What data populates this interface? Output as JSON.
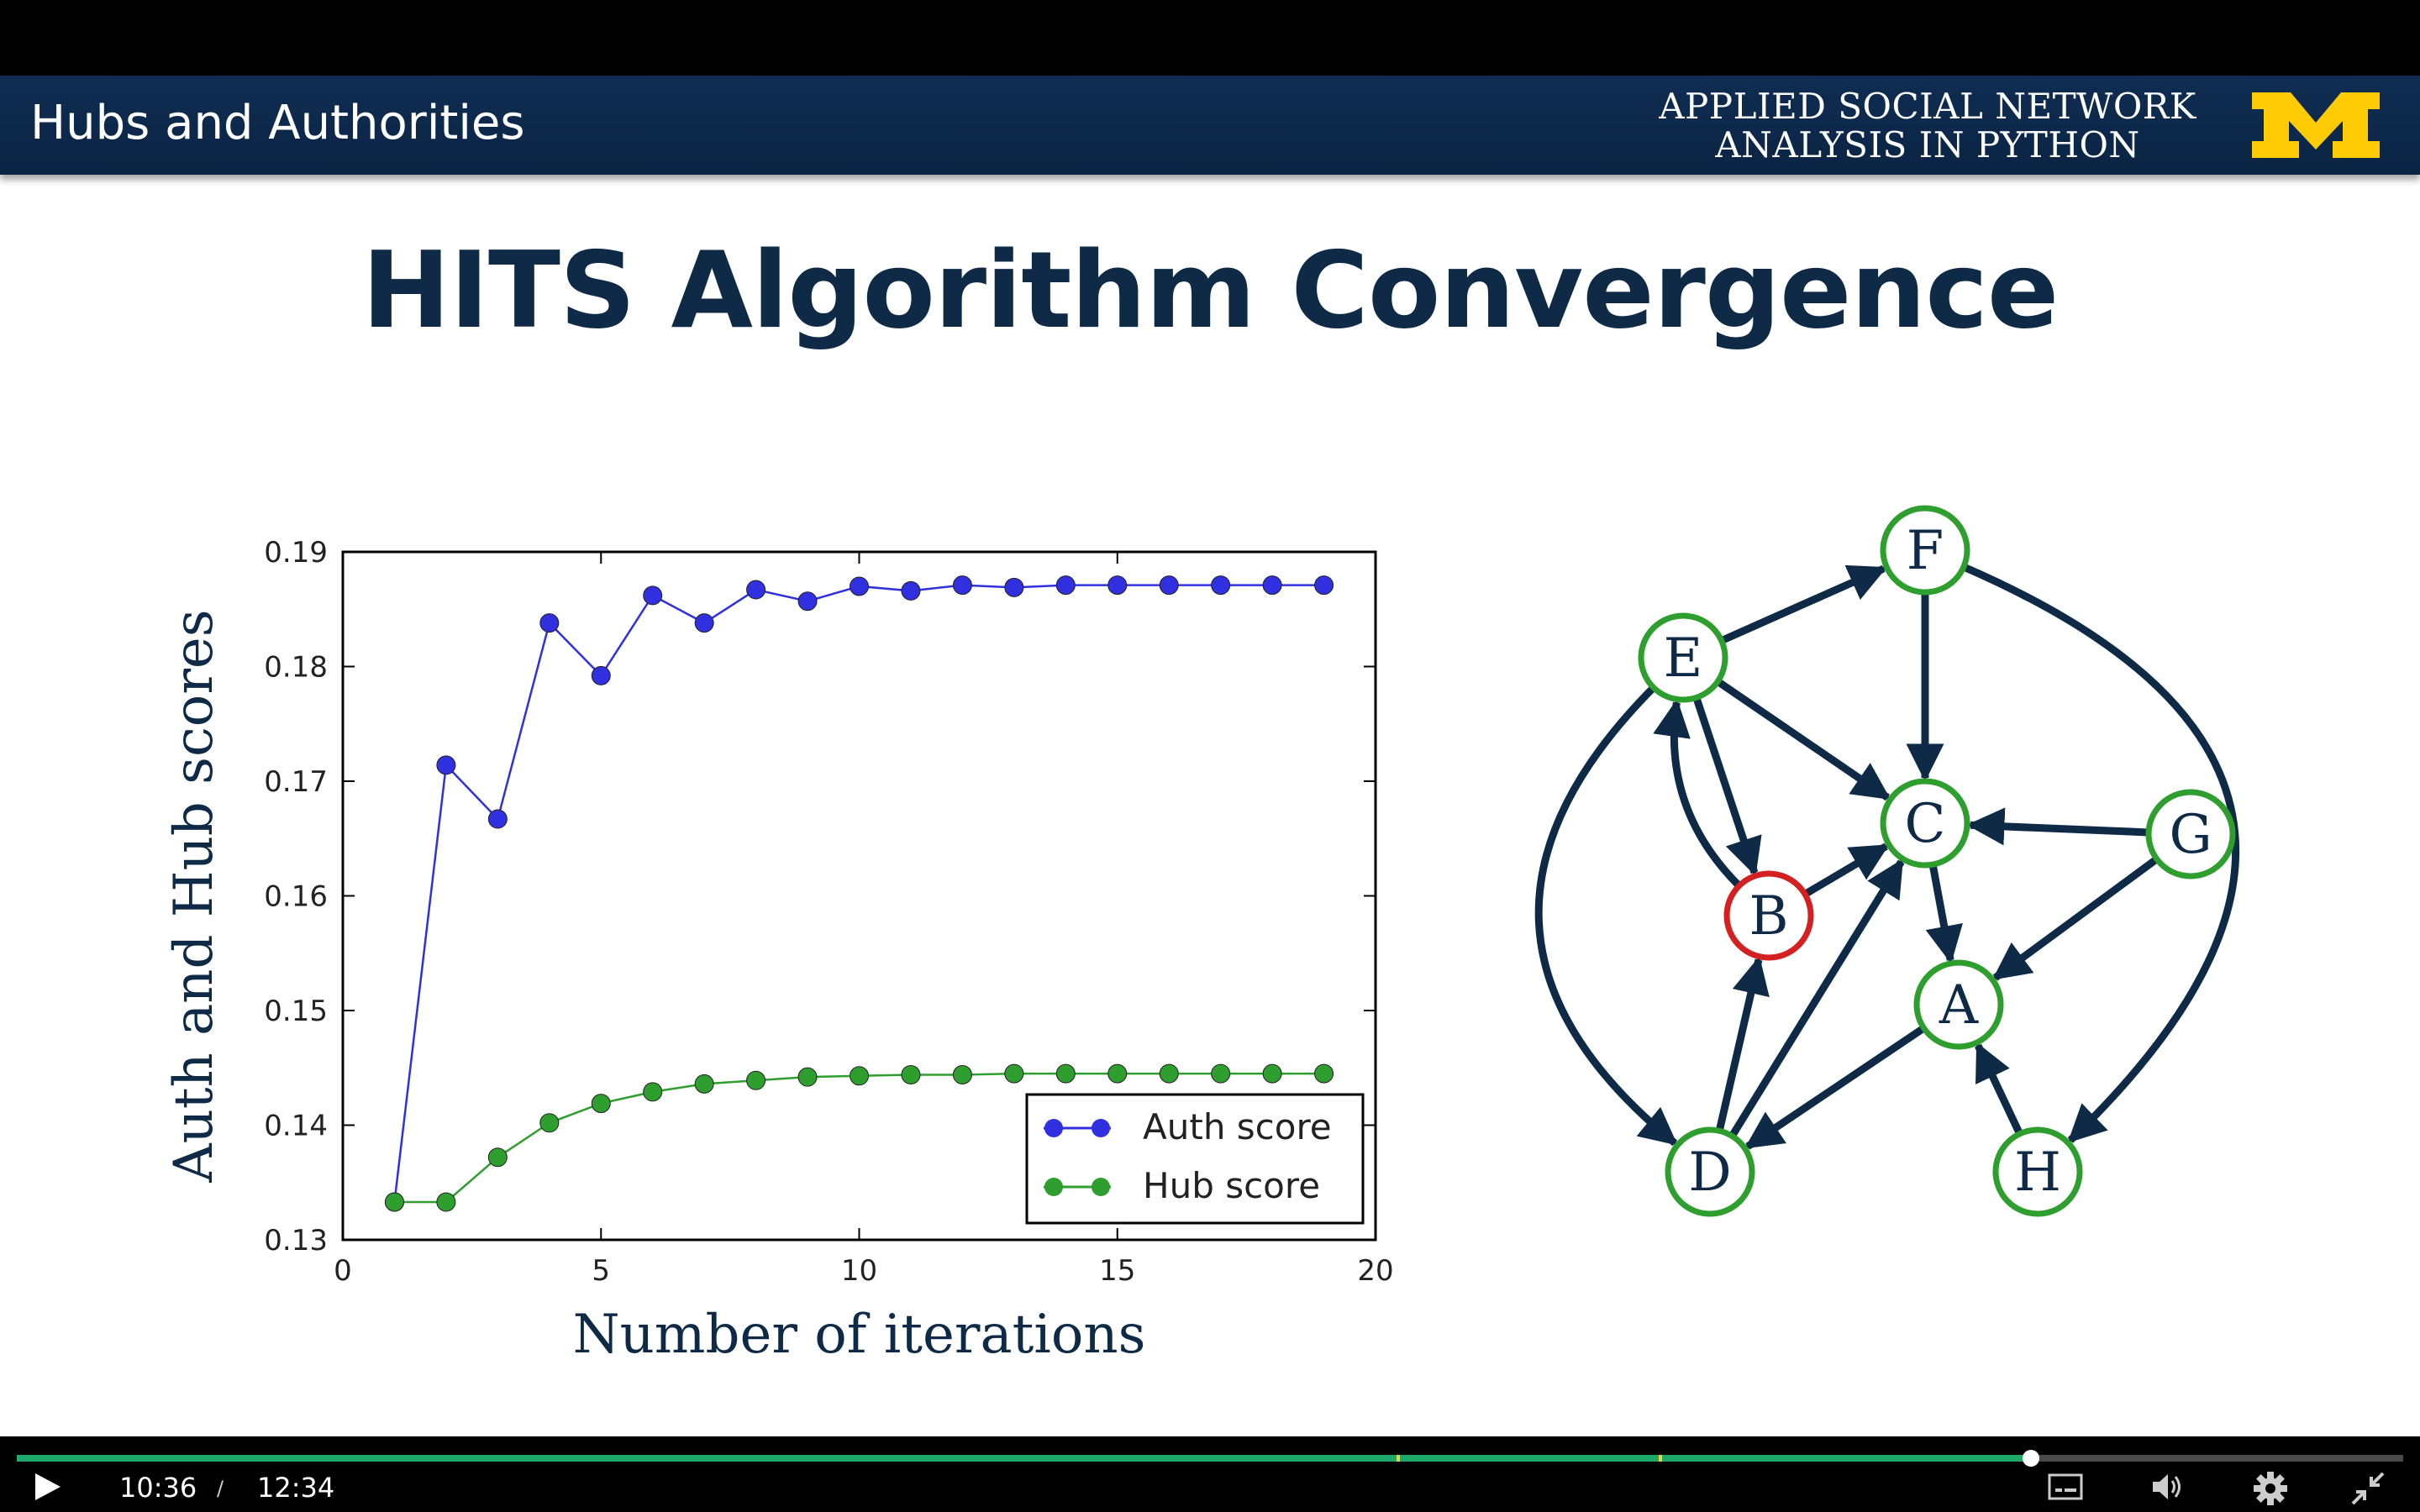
{
  "header": {
    "section_title": "Hubs and Authorities",
    "course_line1": "APPLIED SOCIAL NETWORK",
    "course_line2": "ANALYSIS IN PYTHON",
    "logo_icon": "block-m-logo",
    "colors": {
      "banner": "#0f2d52",
      "logo": "#ffcb05"
    }
  },
  "slide": {
    "title": "HITS Algorithm Convergence"
  },
  "chart_data": {
    "type": "line",
    "title": "",
    "xlabel": "Number of iterations",
    "ylabel": "Auth and Hub scores",
    "xlim": [
      0,
      20
    ],
    "ylim": [
      0.13,
      0.19
    ],
    "xticks": [
      0,
      5,
      10,
      15,
      20
    ],
    "yticks": [
      0.13,
      0.14,
      0.15,
      0.16,
      0.17,
      0.18,
      0.19
    ],
    "grid": false,
    "legend_position": "lower-right",
    "x": [
      1,
      2,
      3,
      4,
      5,
      6,
      7,
      8,
      9,
      10,
      11,
      12,
      13,
      14,
      15,
      16,
      17,
      18,
      19
    ],
    "series": [
      {
        "name": "Auth score",
        "color": "#3030e0",
        "values": [
          0.1333,
          0.1714,
          0.1667,
          0.1838,
          0.1792,
          0.1862,
          0.1838,
          0.1867,
          0.1857,
          0.187,
          0.1866,
          0.1871,
          0.1869,
          0.1871,
          0.1871,
          0.1871,
          0.1871,
          0.1871,
          0.1871
        ]
      },
      {
        "name": "Hub score",
        "color": "#2e9e2e",
        "values": [
          0.1333,
          0.1333,
          0.1372,
          0.1402,
          0.1419,
          0.1429,
          0.1436,
          0.1439,
          0.1442,
          0.1443,
          0.1444,
          0.1444,
          0.1445,
          0.1445,
          0.1445,
          0.1445,
          0.1445,
          0.1445,
          0.1445
        ]
      }
    ]
  },
  "network": {
    "nodes": [
      {
        "id": "F",
        "label": "F",
        "color": "#2e9e2e"
      },
      {
        "id": "E",
        "label": "E",
        "color": "#2e9e2e"
      },
      {
        "id": "C",
        "label": "C",
        "color": "#2e9e2e"
      },
      {
        "id": "G",
        "label": "G",
        "color": "#2e9e2e"
      },
      {
        "id": "B",
        "label": "B",
        "color": "#d42020"
      },
      {
        "id": "A",
        "label": "A",
        "color": "#2e9e2e"
      },
      {
        "id": "D",
        "label": "D",
        "color": "#2e9e2e"
      },
      {
        "id": "H",
        "label": "H",
        "color": "#2e9e2e"
      }
    ],
    "edges": [
      [
        "E",
        "F"
      ],
      [
        "F",
        "C"
      ],
      [
        "E",
        "C"
      ],
      [
        "E",
        "B"
      ],
      [
        "B",
        "E"
      ],
      [
        "B",
        "C"
      ],
      [
        "G",
        "C"
      ],
      [
        "G",
        "A"
      ],
      [
        "C",
        "A"
      ],
      [
        "D",
        "B"
      ],
      [
        "D",
        "C"
      ],
      [
        "A",
        "D"
      ],
      [
        "H",
        "A"
      ],
      [
        "E",
        "D"
      ],
      [
        "F",
        "H"
      ]
    ],
    "edge_color": "#0e2a47"
  },
  "player": {
    "current_time": "10:36",
    "separator": "/",
    "duration": "12:34",
    "progress_fraction": 0.844,
    "chapter_marker_fractions": [
      0.578,
      0.688
    ],
    "colors": {
      "played": "#1fa86a",
      "marker": "#e7d64b"
    },
    "icons": [
      "play-icon",
      "captions-icon",
      "volume-icon",
      "settings-icon",
      "exit-fullscreen-icon"
    ]
  }
}
